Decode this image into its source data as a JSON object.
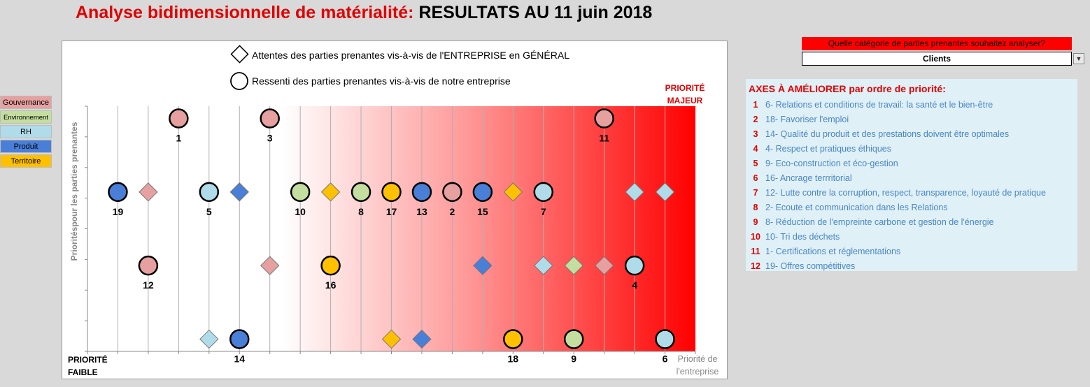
{
  "title": {
    "part1": "Analyse bidimensionnelle de matérialité:",
    "part2": "RESULTATS AU 11 juin 2018"
  },
  "legend": [
    {
      "label": "Gouvernance",
      "color": "#e6a0a0"
    },
    {
      "label": "Environnement",
      "color": "#c4dea0"
    },
    {
      "label": "RH",
      "color": "#b0dcea"
    },
    {
      "label": "Produit",
      "color": "#4a7fd8"
    },
    {
      "label": "Territoire",
      "color": "#ffc000"
    }
  ],
  "question": "Quelle catégorie de parties prenantes souhaitez analyser?",
  "selected": "Clients",
  "axes_panel": {
    "heading": "AXES À AMÉLIORER par ordre de priorité:",
    "items": [
      {
        "rank": "1",
        "label": "6- Relations et conditions de travail: la santé et le bien-être"
      },
      {
        "rank": "2",
        "label": "18- Favoriser l'emploi"
      },
      {
        "rank": "3",
        "label": "14- Qualité du produit et des prestations doivent être optimales"
      },
      {
        "rank": "4",
        "label": "4- Respect et pratiques éthiques"
      },
      {
        "rank": "5",
        "label": "9- Eco-construction et éco-gestion"
      },
      {
        "rank": "6",
        "label": "16- Ancrage terrritorial"
      },
      {
        "rank": "7",
        "label": "12- Lutte contre la corruption, respect, transparence, loyauté de pratique"
      },
      {
        "rank": "8",
        "label": "2- Ecoute et communication dans les Relations"
      },
      {
        "rank": "9",
        "label": "8- Réduction de l'empreinte carbone et gestion de l'énergie"
      },
      {
        "rank": "10",
        "label": "10- Tri des déchets"
      },
      {
        "rank": "11",
        "label": "1- Certifications et réglementations"
      },
      {
        "rank": "12",
        "label": "19- Offres compétitives"
      }
    ]
  },
  "chart_data": {
    "type": "scatter",
    "legend_items": [
      "Attentes des parties prenantes vis-à-vis de l'ENTREPRISE en GÉNÉRAL",
      "Ressenti des parties prenantes vis-à-vis de notre entreprise"
    ],
    "ylabel": "Prioritéspour les parties prenantes",
    "xlabel": "Priorité de l'entreprise",
    "corner_low": "PRIORITÉ FAIBLE",
    "corner_high": "PRIORITÉ MAJEUR",
    "xlim": [
      0,
      20
    ],
    "ylim": [
      0,
      4
    ],
    "grid_x": true,
    "category_colors": {
      "Gouvernance": "#e6a0a0",
      "Environnement": "#c4dea0",
      "RH": "#b0dcea",
      "Produit": "#4a7fd8",
      "Territoire": "#ffc000"
    },
    "ressenti": [
      {
        "label": "1",
        "x": 3,
        "y": 3.8,
        "category": "Gouvernance"
      },
      {
        "label": "3",
        "x": 6,
        "y": 3.8,
        "category": "Gouvernance"
      },
      {
        "label": "11",
        "x": 17,
        "y": 3.8,
        "category": "Gouvernance"
      },
      {
        "label": "19",
        "x": 1,
        "y": 2.6,
        "category": "Produit"
      },
      {
        "label": "5",
        "x": 4,
        "y": 2.6,
        "category": "RH"
      },
      {
        "label": "10",
        "x": 7,
        "y": 2.6,
        "category": "Environnement"
      },
      {
        "label": "8",
        "x": 9,
        "y": 2.6,
        "category": "Environnement"
      },
      {
        "label": "17",
        "x": 10,
        "y": 2.6,
        "category": "Territoire"
      },
      {
        "label": "13",
        "x": 11,
        "y": 2.6,
        "category": "Produit"
      },
      {
        "label": "2",
        "x": 12,
        "y": 2.6,
        "category": "Gouvernance"
      },
      {
        "label": "15",
        "x": 13,
        "y": 2.6,
        "category": "Produit"
      },
      {
        "label": "7",
        "x": 15,
        "y": 2.6,
        "category": "RH"
      },
      {
        "label": "12",
        "x": 2,
        "y": 1.4,
        "category": "Gouvernance"
      },
      {
        "label": "16",
        "x": 8,
        "y": 1.4,
        "category": "Territoire"
      },
      {
        "label": "4",
        "x": 18,
        "y": 1.4,
        "category": "RH"
      },
      {
        "label": "14",
        "x": 5,
        "y": 0.2,
        "category": "Produit"
      },
      {
        "label": "18",
        "x": 14,
        "y": 0.2,
        "category": "Territoire"
      },
      {
        "label": "9",
        "x": 16,
        "y": 0.2,
        "category": "Environnement"
      },
      {
        "label": "6",
        "x": 19,
        "y": 0.2,
        "category": "RH"
      }
    ],
    "attentes": [
      {
        "x": 2,
        "y": 2.6,
        "category": "Gouvernance"
      },
      {
        "x": 5,
        "y": 2.6,
        "category": "Produit"
      },
      {
        "x": 8,
        "y": 2.6,
        "category": "Territoire"
      },
      {
        "x": 14,
        "y": 2.6,
        "category": "Territoire"
      },
      {
        "x": 18,
        "y": 2.6,
        "category": "RH"
      },
      {
        "x": 19,
        "y": 2.6,
        "category": "RH"
      },
      {
        "x": 6,
        "y": 1.4,
        "category": "Gouvernance"
      },
      {
        "x": 13,
        "y": 1.4,
        "category": "Produit"
      },
      {
        "x": 15,
        "y": 1.4,
        "category": "RH"
      },
      {
        "x": 16,
        "y": 1.4,
        "category": "Environnement"
      },
      {
        "x": 17,
        "y": 1.4,
        "category": "Gouvernance"
      },
      {
        "x": 4,
        "y": 0.2,
        "category": "RH"
      },
      {
        "x": 10,
        "y": 0.2,
        "category": "Territoire"
      },
      {
        "x": 11,
        "y": 0.2,
        "category": "Produit"
      }
    ]
  }
}
